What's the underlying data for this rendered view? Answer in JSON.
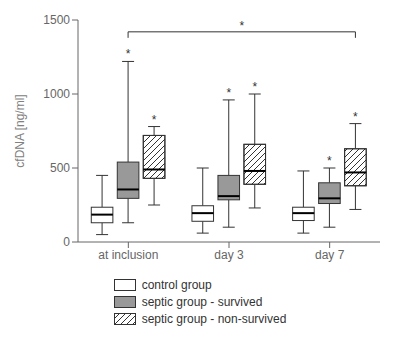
{
  "chart_data": {
    "type": "box",
    "ylabel": "cfDNA [ng/ml]",
    "ylim": [
      0,
      1500
    ],
    "yticks": [
      0,
      500,
      1000,
      1500
    ],
    "grid": false,
    "legend": "bottom",
    "categories": [
      "at inclusion",
      "day 3",
      "day 7"
    ],
    "series": [
      {
        "name": "control group",
        "color": "#ffffff",
        "values": [
          {
            "whislo": 50,
            "q1": 130,
            "med": 185,
            "q3": 235,
            "whishi": 450
          },
          {
            "whislo": 60,
            "q1": 140,
            "med": 195,
            "q3": 245,
            "whishi": 500
          },
          {
            "whislo": 60,
            "q1": 145,
            "med": 195,
            "q3": 235,
            "whishi": 480
          }
        ]
      },
      {
        "name": "septic group - survived",
        "color": "#999999",
        "values": [
          {
            "whislo": 130,
            "q1": 295,
            "med": 355,
            "q3": 540,
            "whishi": 1220
          },
          {
            "whislo": 100,
            "q1": 285,
            "med": 310,
            "q3": 450,
            "whishi": 960
          },
          {
            "whislo": 100,
            "q1": 260,
            "med": 295,
            "q3": 400,
            "whishi": 500
          }
        ]
      },
      {
        "name": "septic group - non-survived",
        "color": "#ffffff",
        "values": [
          {
            "whislo": 250,
            "q1": 430,
            "med": 490,
            "q3": 720,
            "whishi": 780
          },
          {
            "whislo": 230,
            "q1": 390,
            "med": 480,
            "q3": 660,
            "whishi": 1000
          },
          {
            "whislo": 220,
            "q1": 380,
            "med": 470,
            "q3": 630,
            "whishi": 800
          }
        ]
      }
    ],
    "annotations": [
      {
        "text": "*",
        "series": "septic group - survived",
        "category": "at inclusion"
      },
      {
        "text": "*",
        "series": "septic group - survived",
        "category": "day 3"
      },
      {
        "text": "*",
        "series": "septic group - survived",
        "category": "day 7"
      },
      {
        "text": "*",
        "series": "septic group - non-survived",
        "category": "at inclusion"
      },
      {
        "text": "*",
        "series": "septic group - non-survived",
        "category": "day 3"
      },
      {
        "text": "*",
        "series": "septic group - non-survived",
        "category": "day 7"
      }
    ],
    "bracket": {
      "text": "*",
      "y": 1420,
      "from": {
        "series": "septic group - survived",
        "category": "at inclusion"
      },
      "to": {
        "series": "septic group - non-survived",
        "category": "day 7"
      }
    }
  }
}
